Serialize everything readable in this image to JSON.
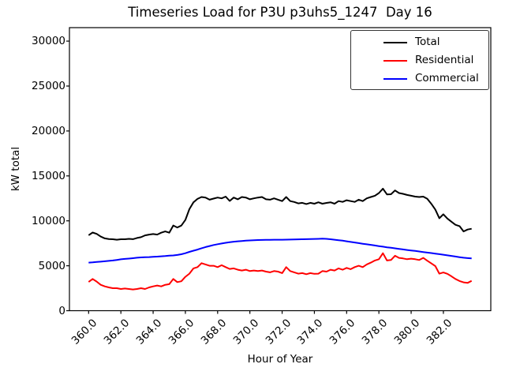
{
  "figure": {
    "title": "Timeseries Load for P3U p3uhs5_1247  Day 16",
    "xlabel": "Hour of Year",
    "ylabel": "kW total",
    "background_color": "#ffffff",
    "axes_color": "#000000"
  },
  "legend": {
    "position": "upper right",
    "border_color": "#333333",
    "items": [
      {
        "label": "Total",
        "color": "#000000"
      },
      {
        "label": "Residential",
        "color": "#ff0000"
      },
      {
        "label": "Commercial",
        "color": "#0000ff"
      }
    ]
  },
  "chart_data": {
    "type": "line",
    "title": "Timeseries Load for P3U p3uhs5_1247  Day 16",
    "xlabel": "Hour of Year",
    "ylabel": "kW total",
    "grid": false,
    "legend_position": "upper right",
    "xlim": [
      358.81,
      384.94
    ],
    "ylim": [
      0,
      31500
    ],
    "x_ticks": [
      "360.0",
      "362.0",
      "364.0",
      "366.0",
      "368.0",
      "370.0",
      "372.0",
      "374.0",
      "376.0",
      "378.0",
      "380.0",
      "382.0"
    ],
    "y_ticks": [
      "0",
      "5000",
      "10000",
      "15000",
      "20000",
      "25000",
      "30000"
    ],
    "x_start": 360.0,
    "x_step": 0.25,
    "series": [
      {
        "name": "Total",
        "color": "#000000",
        "values": [
          8400,
          8700,
          8550,
          8250,
          8050,
          7980,
          7950,
          7900,
          7950,
          7950,
          8000,
          7960,
          8090,
          8180,
          8380,
          8470,
          8530,
          8470,
          8680,
          8820,
          8680,
          9480,
          9260,
          9470,
          10100,
          11300,
          12060,
          12440,
          12650,
          12590,
          12350,
          12480,
          12590,
          12500,
          12700,
          12210,
          12590,
          12400,
          12650,
          12590,
          12400,
          12500,
          12590,
          12650,
          12400,
          12350,
          12500,
          12350,
          12200,
          12650,
          12200,
          12100,
          11940,
          12000,
          11870,
          12000,
          11910,
          12060,
          11910,
          11990,
          12060,
          11910,
          12200,
          12110,
          12290,
          12200,
          12110,
          12350,
          12200,
          12500,
          12650,
          12790,
          13090,
          13580,
          12940,
          12960,
          13380,
          13090,
          13000,
          12880,
          12790,
          12700,
          12650,
          12700,
          12450,
          11900,
          11260,
          10290,
          10730,
          10250,
          9900,
          9560,
          9410,
          8820,
          9030,
          9120
        ]
      },
      {
        "name": "Residential",
        "color": "#ff0000",
        "values": [
          3200,
          3530,
          3240,
          2880,
          2710,
          2590,
          2500,
          2500,
          2420,
          2470,
          2420,
          2360,
          2420,
          2500,
          2420,
          2590,
          2710,
          2800,
          2710,
          2880,
          2950,
          3530,
          3180,
          3280,
          3770,
          4120,
          4710,
          4850,
          5290,
          5150,
          5000,
          5000,
          4850,
          5060,
          4850,
          4650,
          4710,
          4560,
          4470,
          4560,
          4410,
          4470,
          4410,
          4470,
          4350,
          4270,
          4410,
          4350,
          4180,
          4850,
          4410,
          4270,
          4120,
          4180,
          4060,
          4180,
          4100,
          4120,
          4410,
          4350,
          4560,
          4470,
          4710,
          4560,
          4760,
          4620,
          4850,
          5000,
          4850,
          5150,
          5350,
          5590,
          5730,
          6400,
          5590,
          5640,
          6115,
          5880,
          5820,
          5730,
          5790,
          5730,
          5640,
          5880,
          5560,
          5260,
          4965,
          4120,
          4250,
          4100,
          3830,
          3530,
          3300,
          3150,
          3090,
          3325
        ]
      },
      {
        "name": "Commercial",
        "color": "#0000ff",
        "values": [
          5350,
          5380,
          5420,
          5460,
          5500,
          5540,
          5590,
          5650,
          5720,
          5760,
          5800,
          5840,
          5900,
          5930,
          5950,
          5970,
          6000,
          6020,
          6050,
          6080,
          6120,
          6150,
          6200,
          6280,
          6400,
          6550,
          6680,
          6800,
          6950,
          7080,
          7200,
          7310,
          7400,
          7480,
          7560,
          7620,
          7680,
          7720,
          7760,
          7790,
          7820,
          7840,
          7860,
          7870,
          7880,
          7890,
          7900,
          7900,
          7900,
          7910,
          7920,
          7930,
          7940,
          7950,
          7960,
          7980,
          7990,
          8000,
          8010,
          8000,
          7950,
          7900,
          7850,
          7790,
          7720,
          7650,
          7590,
          7520,
          7450,
          7390,
          7330,
          7260,
          7190,
          7130,
          7060,
          7000,
          6940,
          6880,
          6820,
          6760,
          6700,
          6650,
          6590,
          6530,
          6470,
          6410,
          6350,
          6290,
          6230,
          6160,
          6100,
          6030,
          5960,
          5900,
          5850,
          5820
        ]
      }
    ]
  }
}
